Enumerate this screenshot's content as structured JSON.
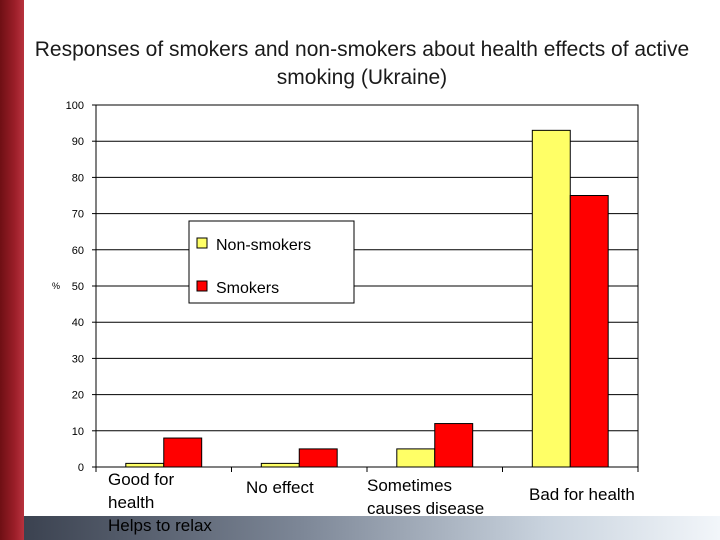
{
  "title": "Responses of smokers and non-smokers about health effects of active smoking (Ukraine)",
  "chart_data": {
    "type": "bar",
    "categories": [
      "Good for\nhealth\nHelps to relax",
      "No effect",
      "Sometimes\ncauses disease",
      "Bad for health"
    ],
    "series": [
      {
        "name": "Non-smokers",
        "values": [
          1,
          1,
          5,
          93
        ],
        "color": "#ffff66"
      },
      {
        "name": "Smokers",
        "values": [
          8,
          5,
          12,
          75
        ],
        "color": "#ff0000"
      }
    ],
    "ylabel": "%",
    "ylim": [
      0,
      100
    ],
    "yticks": [
      "0",
      "10",
      "20",
      "30",
      "40",
      "50",
      "60",
      "70",
      "80",
      "90",
      "100"
    ],
    "grid": true,
    "legend_position": "center-left"
  }
}
